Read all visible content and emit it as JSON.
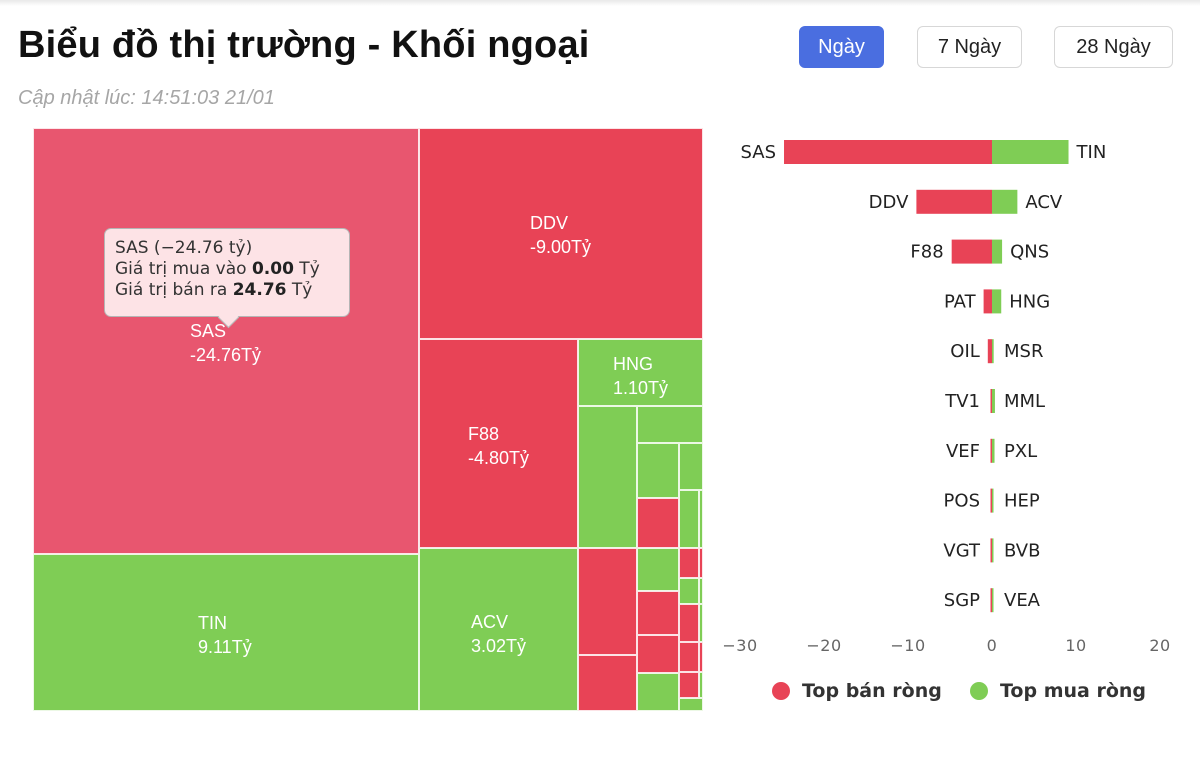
{
  "header": {
    "title": "Biểu đồ thị trường - Khối ngoại",
    "updated": "Cập nhật lúc: 14:51:03 21/01",
    "tabs": [
      {
        "label": "Ngày",
        "active": true
      },
      {
        "label": "7 Ngày",
        "active": false
      },
      {
        "label": "28 Ngày",
        "active": false
      }
    ]
  },
  "colors": {
    "sell": "#e84356",
    "buy": "#7fcd55",
    "highlight_sell": "#e8566f",
    "active_tab": "#4a6ee0"
  },
  "tooltip": {
    "line1": "SAS (−24.76 tỷ)",
    "line2_prefix": "Giá trị mua vào ",
    "line2_value": "0.00",
    "line2_suffix": " Tỷ",
    "line3_prefix": "Giá trị bán ra ",
    "line3_value": "24.76",
    "line3_suffix": " Tỷ"
  },
  "chart_data": [
    {
      "type": "treemap",
      "unit": "Tỷ",
      "cells": [
        {
          "name": "SAS",
          "label": "-24.76Tỷ",
          "value": -24.76
        },
        {
          "name": "DDV",
          "label": "-9.00Tỷ",
          "value": -9.0
        },
        {
          "name": "TIN",
          "label": "9.11Tỷ",
          "value": 9.11
        },
        {
          "name": "F88",
          "label": "-4.80Tỷ",
          "value": -4.8
        },
        {
          "name": "ACV",
          "label": "3.02Tỷ",
          "value": 3.02
        },
        {
          "name": "HNG",
          "label": "1.10Tỷ",
          "value": 1.1
        }
      ]
    },
    {
      "type": "bar",
      "orientation": "horizontal",
      "xlim": [
        -30,
        20
      ],
      "x_ticks": [
        "−30",
        "−20",
        "−10",
        "0",
        "10",
        "20"
      ],
      "legend": [
        "Top bán ròng",
        "Top mua ròng"
      ],
      "rows": [
        {
          "sell": "SAS",
          "sell_value": -24.76,
          "buy": "TIN",
          "buy_value": 9.11
        },
        {
          "sell": "DDV",
          "sell_value": -9.0,
          "buy": "ACV",
          "buy_value": 3.02
        },
        {
          "sell": "F88",
          "sell_value": -4.8,
          "buy": "QNS",
          "buy_value": 1.2
        },
        {
          "sell": "PAT",
          "sell_value": -1.0,
          "buy": "HNG",
          "buy_value": 1.1
        },
        {
          "sell": "OIL",
          "sell_value": -0.5,
          "buy": "MSR",
          "buy_value": 0.2
        },
        {
          "sell": "TV1",
          "sell_value": -0.1,
          "buy": "MML",
          "buy_value": 0.35
        },
        {
          "sell": "VEF",
          "sell_value": -0.1,
          "buy": "PXL",
          "buy_value": 0.3
        },
        {
          "sell": "POS",
          "sell_value": -0.05,
          "buy": "HEP",
          "buy_value": 0.1
        },
        {
          "sell": "VGT",
          "sell_value": -0.05,
          "buy": "BVB",
          "buy_value": 0.1
        },
        {
          "sell": "SGP",
          "sell_value": -0.05,
          "buy": "VEA",
          "buy_value": 0.1
        }
      ]
    }
  ]
}
